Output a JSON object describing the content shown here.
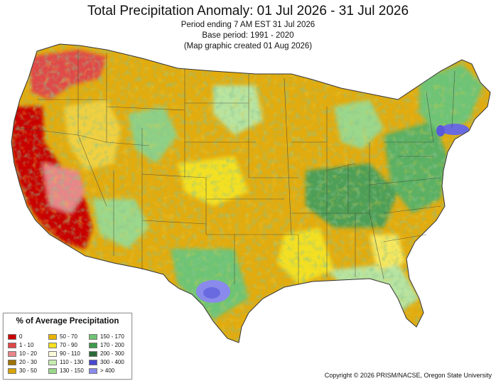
{
  "header": {
    "title": "Total Precipitation Anomaly: 01 Jul 2026 - 31 Jul 2026",
    "line1": "Period ending 7 AM EST 31 Jul 2026",
    "line2": "Base period: 1991 - 2020",
    "line3": "(Map graphic created 01 Aug 2026)"
  },
  "legend": {
    "title": "% of Average Precipitation",
    "items": [
      {
        "label": "0",
        "color": "#cc0000"
      },
      {
        "label": "1 - 10",
        "color": "#e04848"
      },
      {
        "label": "10 - 20",
        "color": "#e8868a"
      },
      {
        "label": "20 - 30",
        "color": "#a07200"
      },
      {
        "label": "30 - 50",
        "color": "#d7a400"
      },
      {
        "label": "50 - 70",
        "color": "#e8b400"
      },
      {
        "label": "70 - 90",
        "color": "#f4e020"
      },
      {
        "label": "90 - 110",
        "color": "#fafad8"
      },
      {
        "label": "110 - 130",
        "color": "#c6ecb0"
      },
      {
        "label": "130 - 150",
        "color": "#9cd88c"
      },
      {
        "label": "150 - 170",
        "color": "#6ec474"
      },
      {
        "label": "170 - 200",
        "color": "#3e9a4c"
      },
      {
        "label": "200 - 300",
        "color": "#2a6a38"
      },
      {
        "label": "300 - 400",
        "color": "#4848d0"
      },
      {
        "label": "> 400",
        "color": "#8a8aec"
      }
    ]
  },
  "copyright": "Copyright © 2026 PRISM/NACSE, Oregon State University"
}
